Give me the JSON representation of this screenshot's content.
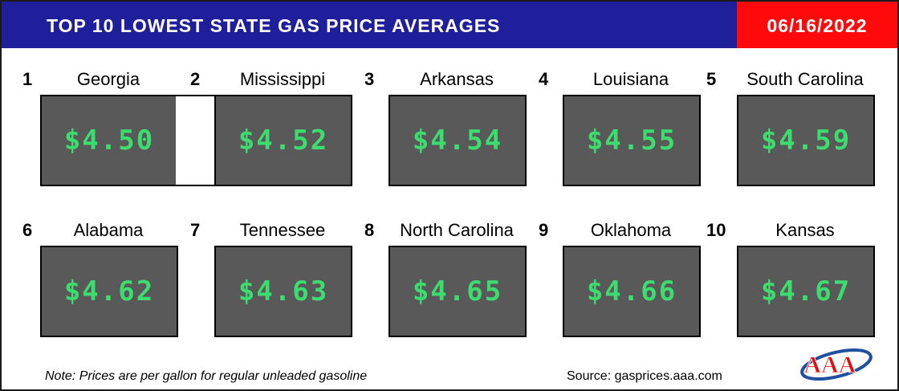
{
  "header": {
    "title": "TOP 10 LOWEST STATE GAS PRICE AVERAGES",
    "date": "06/16/2022"
  },
  "colors": {
    "header_bg": "#1f1f9b",
    "date_bg": "#ff0a0a",
    "box_bg": "#595959",
    "price_text": "#3cdc6e"
  },
  "states": [
    {
      "rank": "1",
      "name": "Georgia",
      "price": "$4.50"
    },
    {
      "rank": "2",
      "name": "Mississippi",
      "price": "$4.52"
    },
    {
      "rank": "3",
      "name": "Arkansas",
      "price": "$4.54"
    },
    {
      "rank": "4",
      "name": "Louisiana",
      "price": "$4.55"
    },
    {
      "rank": "5",
      "name": "South Carolina",
      "price": "$4.59"
    },
    {
      "rank": "6",
      "name": "Alabama",
      "price": "$4.62"
    },
    {
      "rank": "7",
      "name": "Tennessee",
      "price": "$4.63"
    },
    {
      "rank": "8",
      "name": "North Carolina",
      "price": "$4.65"
    },
    {
      "rank": "9",
      "name": "Oklahoma",
      "price": "$4.66"
    },
    {
      "rank": "10",
      "name": "Kansas",
      "price": "$4.67"
    }
  ],
  "footer": {
    "note": "Note: Prices are per gallon for regular unleaded gasoline",
    "source": "Source: gasprices.aaa.com",
    "logo_icon": "aaa-logo-icon",
    "logo_text": "AAA"
  }
}
